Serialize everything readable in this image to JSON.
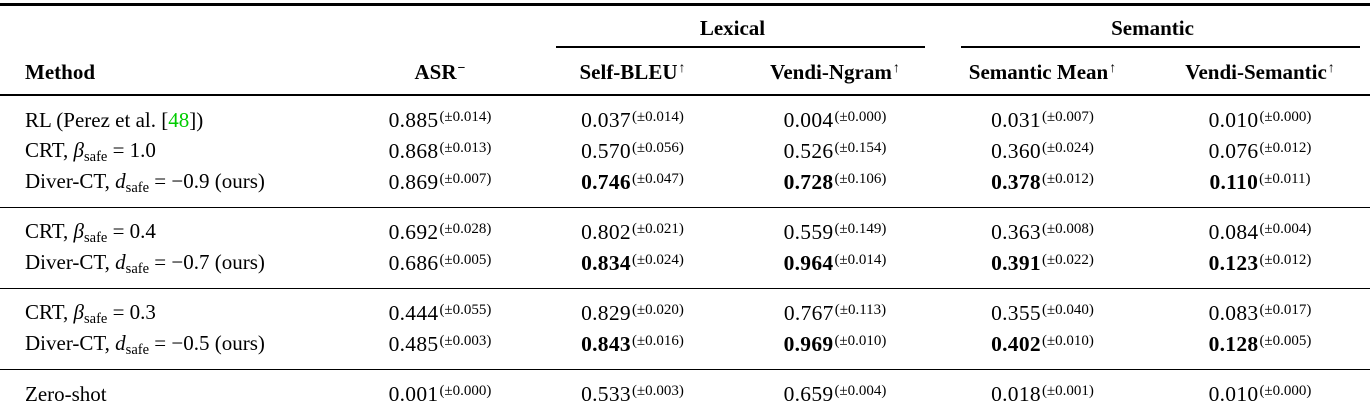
{
  "table": {
    "cite_color": "#00cc00",
    "column_groups": [
      {
        "label": "Lexical"
      },
      {
        "label": "Semantic"
      }
    ],
    "columns": [
      {
        "key": "method",
        "label": "Method",
        "sup": ""
      },
      {
        "key": "asr",
        "label": "ASR",
        "sup": "−"
      },
      {
        "key": "self-bleu",
        "label": "Self-BLEU",
        "sup": "↑"
      },
      {
        "key": "vendi-ngram",
        "label": "Vendi-Ngram",
        "sup": "↑"
      },
      {
        "key": "semantic-mean",
        "label": "Semantic Mean",
        "sup": "↑"
      },
      {
        "key": "vendi-semantic",
        "label": "Vendi-Semantic",
        "sup": "↑"
      }
    ],
    "groups": [
      {
        "rows": [
          {
            "method": [
              {
                "t": "RL (Perez et al. ["
              },
              {
                "t": "48",
                "style": "cite"
              },
              {
                "t": "])"
              }
            ],
            "cells": [
              {
                "v": "0.885",
                "e": "(±0.014)"
              },
              {
                "v": "0.037",
                "e": "(±0.014)"
              },
              {
                "v": "0.004",
                "e": "(±0.000)"
              },
              {
                "v": "0.031",
                "e": "(±0.007)"
              },
              {
                "v": "0.010",
                "e": "(±0.000)"
              }
            ]
          },
          {
            "method": [
              {
                "t": "CRT, "
              },
              {
                "t": "β",
                "style": "mi"
              },
              {
                "t": "safe",
                "style": "sub"
              },
              {
                "t": " = 1.0"
              }
            ],
            "cells": [
              {
                "v": "0.868",
                "e": "(±0.013)"
              },
              {
                "v": "0.570",
                "e": "(±0.056)"
              },
              {
                "v": "0.526",
                "e": "(±0.154)"
              },
              {
                "v": "0.360",
                "e": "(±0.024)"
              },
              {
                "v": "0.076",
                "e": "(±0.012)"
              }
            ]
          },
          {
            "method": [
              {
                "t": "Diver-CT, "
              },
              {
                "t": "d",
                "style": "mi"
              },
              {
                "t": "safe",
                "style": "sub"
              },
              {
                "t": " = −0.9 (ours)"
              }
            ],
            "cells": [
              {
                "v": "0.869",
                "e": "(±0.007)"
              },
              {
                "v": "0.746",
                "e": "(±0.047)",
                "b": true
              },
              {
                "v": "0.728",
                "e": "(±0.106)",
                "b": true
              },
              {
                "v": "0.378",
                "e": "(±0.012)",
                "b": true
              },
              {
                "v": "0.110",
                "e": "(±0.011)",
                "b": true
              }
            ]
          }
        ]
      },
      {
        "rows": [
          {
            "method": [
              {
                "t": "CRT, "
              },
              {
                "t": "β",
                "style": "mi"
              },
              {
                "t": "safe",
                "style": "sub"
              },
              {
                "t": " = 0.4"
              }
            ],
            "cells": [
              {
                "v": "0.692",
                "e": "(±0.028)"
              },
              {
                "v": "0.802",
                "e": "(±0.021)"
              },
              {
                "v": "0.559",
                "e": "(±0.149)"
              },
              {
                "v": "0.363",
                "e": "(±0.008)"
              },
              {
                "v": "0.084",
                "e": "(±0.004)"
              }
            ]
          },
          {
            "method": [
              {
                "t": "Diver-CT, "
              },
              {
                "t": "d",
                "style": "mi"
              },
              {
                "t": "safe",
                "style": "sub"
              },
              {
                "t": " = −0.7 (ours)"
              }
            ],
            "cells": [
              {
                "v": "0.686",
                "e": "(±0.005)"
              },
              {
                "v": "0.834",
                "e": "(±0.024)",
                "b": true
              },
              {
                "v": "0.964",
                "e": "(±0.014)",
                "b": true
              },
              {
                "v": "0.391",
                "e": "(±0.022)",
                "b": true
              },
              {
                "v": "0.123",
                "e": "(±0.012)",
                "b": true
              }
            ]
          }
        ]
      },
      {
        "rows": [
          {
            "method": [
              {
                "t": "CRT, "
              },
              {
                "t": "β",
                "style": "mi"
              },
              {
                "t": "safe",
                "style": "sub"
              },
              {
                "t": " = 0.3"
              }
            ],
            "cells": [
              {
                "v": "0.444",
                "e": "(±0.055)"
              },
              {
                "v": "0.829",
                "e": "(±0.020)"
              },
              {
                "v": "0.767",
                "e": "(±0.113)"
              },
              {
                "v": "0.355",
                "e": "(±0.040)"
              },
              {
                "v": "0.083",
                "e": "(±0.017)"
              }
            ]
          },
          {
            "method": [
              {
                "t": "Diver-CT, "
              },
              {
                "t": "d",
                "style": "mi"
              },
              {
                "t": "safe",
                "style": "sub"
              },
              {
                "t": " = −0.5 (ours)"
              }
            ],
            "cells": [
              {
                "v": "0.485",
                "e": "(±0.003)"
              },
              {
                "v": "0.843",
                "e": "(±0.016)",
                "b": true
              },
              {
                "v": "0.969",
                "e": "(±0.010)",
                "b": true
              },
              {
                "v": "0.402",
                "e": "(±0.010)",
                "b": true
              },
              {
                "v": "0.128",
                "e": "(±0.005)",
                "b": true
              }
            ]
          }
        ]
      },
      {
        "rows": [
          {
            "method": [
              {
                "t": "Zero-shot"
              }
            ],
            "cells": [
              {
                "v": "0.001",
                "e": "(±0.000)"
              },
              {
                "v": "0.533",
                "e": "(±0.003)"
              },
              {
                "v": "0.659",
                "e": "(±0.004)"
              },
              {
                "v": "0.018",
                "e": "(±0.001)"
              },
              {
                "v": "0.010",
                "e": "(±0.000)"
              }
            ]
          }
        ]
      }
    ]
  }
}
